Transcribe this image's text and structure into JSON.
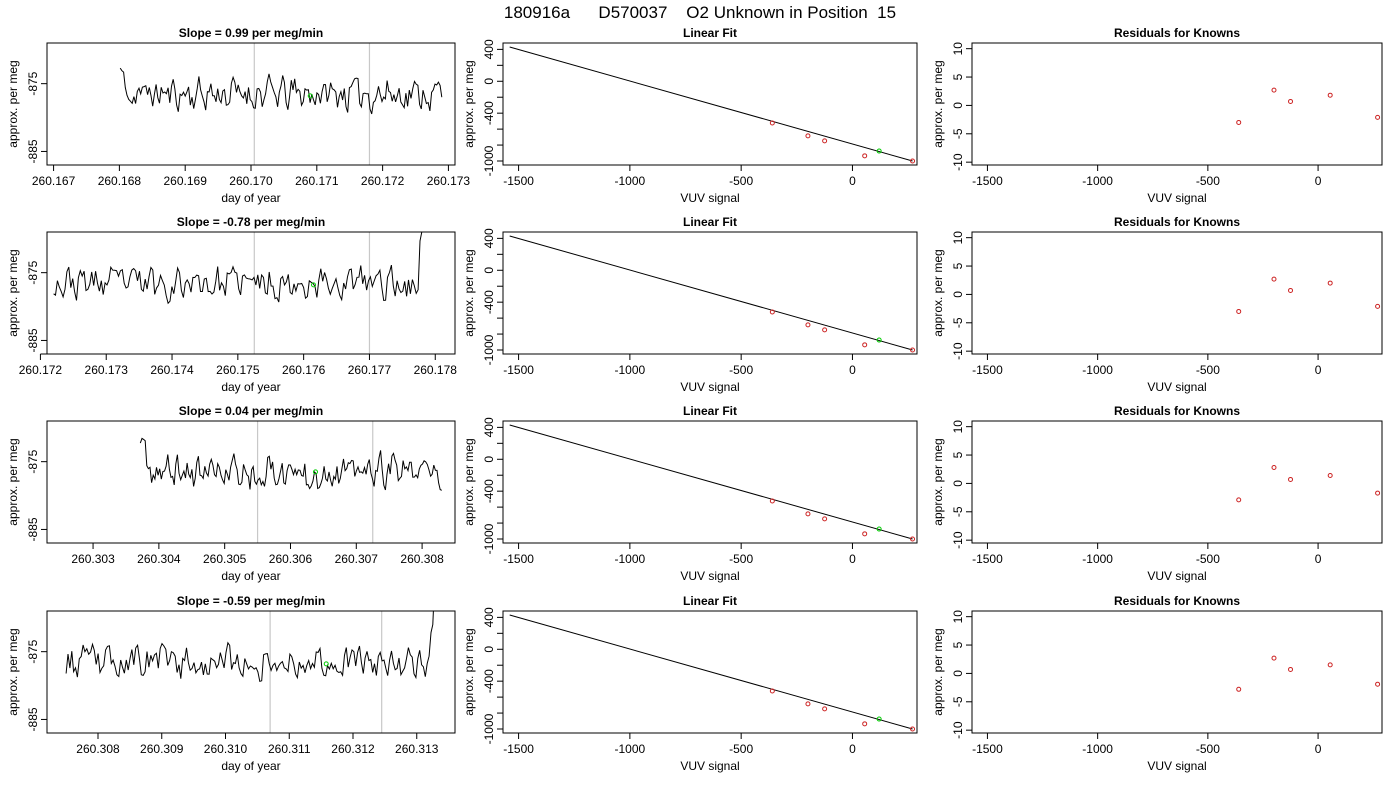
{
  "title": "180916a      D570037    O2 Unknown in Position  15",
  "chart_data": [
    {
      "type": "line",
      "panel": "drift",
      "row": 1,
      "title": "Slope =  0.99  per meg/min",
      "xlabel": "day of year",
      "ylabel": "approx. per meg",
      "xlim": [
        260.1669,
        260.1731
      ],
      "ylim": [
        -887,
        -869
      ],
      "xticks": [
        "260.167",
        "260.168",
        "260.169",
        "260.170",
        "260.171",
        "260.172",
        "260.173"
      ],
      "yticks": [
        "-875",
        "-885"
      ],
      "line": {
        "x_start": 260.1677,
        "x_end": 260.1729,
        "mean": -876.5,
        "amp": 2.2,
        "seed": 11,
        "spike_side": "left",
        "spike_end": 260.1682,
        "visible_start": 260.168
      },
      "vlines": [
        260.17005,
        260.1718
      ],
      "marker": {
        "x": 260.1709,
        "y": -876.8,
        "color": "#00cc00"
      }
    },
    {
      "type": "scatter",
      "panel": "fit",
      "row": 1,
      "title": "Linear Fit",
      "xlabel": "VUV signal",
      "ylabel": "approx. per meg",
      "xlim": [
        -1570,
        290
      ],
      "ylim": [
        -1050,
        480
      ],
      "xticks": [
        "-1500",
        "-1000",
        "-500",
        "0"
      ],
      "yticks": [
        "400",
        "0",
        "-400",
        "-1000"
      ],
      "ytick_values": [
        400,
        0,
        -400,
        -1000
      ],
      "yminor": [
        200,
        -200,
        -600,
        -800
      ],
      "fit_line": {
        "x0": -1540,
        "y0": 430,
        "x1": 270,
        "y1": -1000
      },
      "knowns": {
        "x": [
          -360,
          -200,
          -125,
          55,
          270
        ],
        "y": [
          -523,
          -685,
          -747,
          -935,
          -1000
        ],
        "color": "#cc2222"
      },
      "unknown": {
        "x": 120,
        "y": -875,
        "color": "#00cc00"
      }
    },
    {
      "type": "scatter",
      "panel": "residuals",
      "row": 1,
      "title": "Residuals for Knowns",
      "xlabel": "VUV signal",
      "ylabel": "approx. per meg",
      "xlim": [
        -1570,
        290
      ],
      "ylim": [
        -10.5,
        11
      ],
      "xticks": [
        "-1500",
        "-1000",
        "-500",
        "0"
      ],
      "yticks": [
        "10",
        "5",
        "0",
        "-5",
        "-10"
      ],
      "ytick_values": [
        10,
        5,
        0,
        -5,
        -10
      ],
      "points": {
        "x": [
          -360,
          -200,
          -125,
          55,
          270
        ],
        "y": [
          -3.0,
          2.7,
          0.7,
          1.8,
          -2.1
        ],
        "color": "#cc2222"
      }
    },
    {
      "type": "line",
      "panel": "drift",
      "row": 2,
      "title": "Slope =  -0.78  per meg/min",
      "xlabel": "day of year",
      "ylabel": "approx. per meg",
      "xlim": [
        260.1721,
        260.1783
      ],
      "ylim": [
        -887,
        -869
      ],
      "xticks": [
        "260.172",
        "260.173",
        "260.174",
        "260.175",
        "260.176",
        "260.177",
        "260.178"
      ],
      "yticks": [
        "-875",
        "-885"
      ],
      "line": {
        "x_start": 260.1722,
        "x_end": 260.178,
        "mean": -876.5,
        "amp": 2.2,
        "seed": 23,
        "spike_side": "right",
        "spike_start": 260.1776,
        "visible_start": 260.1722
      },
      "vlines": [
        260.17525,
        260.177
      ],
      "marker": {
        "x": 260.17615,
        "y": -876.8,
        "color": "#00cc00"
      }
    },
    {
      "type": "scatter",
      "panel": "fit",
      "row": 2,
      "title": "Linear Fit",
      "xlabel": "VUV signal",
      "ylabel": "approx. per meg",
      "xlim": [
        -1570,
        290
      ],
      "ylim": [
        -1050,
        480
      ],
      "xticks": [
        "-1500",
        "-1000",
        "-500",
        "0"
      ],
      "yticks": [
        "400",
        "0",
        "-400",
        "-1000"
      ],
      "ytick_values": [
        400,
        0,
        -400,
        -1000
      ],
      "yminor": [
        200,
        -200,
        -600,
        -800
      ],
      "fit_line": {
        "x0": -1540,
        "y0": 430,
        "x1": 270,
        "y1": -1000
      },
      "knowns": {
        "x": [
          -360,
          -200,
          -125,
          55,
          270
        ],
        "y": [
          -523,
          -685,
          -747,
          -935,
          -1000
        ],
        "color": "#cc2222"
      },
      "unknown": {
        "x": 120,
        "y": -875,
        "color": "#00cc00"
      }
    },
    {
      "type": "scatter",
      "panel": "residuals",
      "row": 2,
      "title": "Residuals for Knowns",
      "xlabel": "VUV signal",
      "ylabel": "approx. per meg",
      "xlim": [
        -1570,
        290
      ],
      "ylim": [
        -10.5,
        11
      ],
      "xticks": [
        "-1500",
        "-1000",
        "-500",
        "0"
      ],
      "yticks": [
        "10",
        "5",
        "0",
        "-5",
        "-10"
      ],
      "ytick_values": [
        10,
        5,
        0,
        -5,
        -10
      ],
      "points": {
        "x": [
          -360,
          -200,
          -125,
          55,
          270
        ],
        "y": [
          -3.0,
          2.7,
          0.7,
          2.0,
          -2.1
        ],
        "color": "#cc2222"
      }
    },
    {
      "type": "line",
      "panel": "drift",
      "row": 3,
      "title": "Slope =  0.04  per meg/min",
      "xlabel": "day of year",
      "ylabel": "approx. per meg",
      "xlim": [
        260.3023,
        260.3085
      ],
      "ylim": [
        -887,
        -869
      ],
      "xticks": [
        "260.303",
        "260.304",
        "260.305",
        "260.306",
        "260.307",
        "260.308"
      ],
      "yticks": [
        "-875",
        "-885"
      ],
      "line": {
        "x_start": 260.3034,
        "x_end": 260.3083,
        "mean": -876.5,
        "amp": 2.2,
        "seed": 37,
        "spike_side": "left",
        "spike_end": 260.3039,
        "visible_start": 260.3037
      },
      "vlines": [
        260.3055,
        260.30725
      ],
      "marker": {
        "x": 260.30638,
        "y": -876.5,
        "color": "#00cc00"
      }
    },
    {
      "type": "scatter",
      "panel": "fit",
      "row": 3,
      "title": "Linear Fit",
      "xlabel": "VUV signal",
      "ylabel": "approx. per meg",
      "xlim": [
        -1570,
        290
      ],
      "ylim": [
        -1050,
        480
      ],
      "xticks": [
        "-1500",
        "-1000",
        "-500",
        "0"
      ],
      "yticks": [
        "400",
        "0",
        "-400",
        "-1000"
      ],
      "ytick_values": [
        400,
        0,
        -400,
        -1000
      ],
      "yminor": [
        200,
        -200,
        -600,
        -800
      ],
      "fit_line": {
        "x0": -1540,
        "y0": 430,
        "x1": 270,
        "y1": -1000
      },
      "knowns": {
        "x": [
          -360,
          -200,
          -125,
          55,
          270
        ],
        "y": [
          -523,
          -685,
          -747,
          -935,
          -1000
        ],
        "color": "#cc2222"
      },
      "unknown": {
        "x": 120,
        "y": -875,
        "color": "#00cc00"
      }
    },
    {
      "type": "scatter",
      "panel": "residuals",
      "row": 3,
      "title": "Residuals for Knowns",
      "xlabel": "VUV signal",
      "ylabel": "approx. per meg",
      "xlim": [
        -1570,
        290
      ],
      "ylim": [
        -10.5,
        11
      ],
      "xticks": [
        "-1500",
        "-1000",
        "-500",
        "0"
      ],
      "yticks": [
        "10",
        "5",
        "0",
        "-5",
        "-10"
      ],
      "ytick_values": [
        10,
        5,
        0,
        -5,
        -10
      ],
      "points": {
        "x": [
          -360,
          -200,
          -125,
          55,
          270
        ],
        "y": [
          -2.9,
          2.8,
          0.7,
          1.4,
          -1.7
        ],
        "color": "#cc2222"
      }
    },
    {
      "type": "line",
      "panel": "drift",
      "row": 4,
      "title": "Slope =  -0.59  per meg/min",
      "xlabel": "day of year",
      "ylabel": "approx. per meg",
      "xlim": [
        260.3072,
        260.3136
      ],
      "ylim": [
        -887,
        -869
      ],
      "xticks": [
        "260.308",
        "260.309",
        "260.310",
        "260.311",
        "260.312",
        "260.313"
      ],
      "yticks": [
        "-875",
        "-885"
      ],
      "line": {
        "x_start": 260.3075,
        "x_end": 260.3134,
        "mean": -876.5,
        "amp": 2.2,
        "seed": 53,
        "spike_side": "right",
        "spike_start": 260.3131,
        "visible_start": 260.3075
      },
      "vlines": [
        260.3107,
        260.31245
      ],
      "marker": {
        "x": 260.31158,
        "y": -876.8,
        "color": "#00cc00"
      }
    },
    {
      "type": "scatter",
      "panel": "fit",
      "row": 4,
      "title": "Linear Fit",
      "xlabel": "VUV signal",
      "ylabel": "approx. per meg",
      "xlim": [
        -1570,
        290
      ],
      "ylim": [
        -1050,
        480
      ],
      "xticks": [
        "-1500",
        "-1000",
        "-500",
        "0"
      ],
      "yticks": [
        "400",
        "0",
        "-400",
        "-1000"
      ],
      "ytick_values": [
        400,
        0,
        -400,
        -1000
      ],
      "yminor": [
        200,
        -200,
        -600,
        -800
      ],
      "fit_line": {
        "x0": -1540,
        "y0": 430,
        "x1": 270,
        "y1": -1000
      },
      "knowns": {
        "x": [
          -360,
          -200,
          -125,
          55,
          270
        ],
        "y": [
          -523,
          -685,
          -747,
          -935,
          -1000
        ],
        "color": "#cc2222"
      },
      "unknown": {
        "x": 120,
        "y": -875,
        "color": "#00cc00"
      }
    },
    {
      "type": "scatter",
      "panel": "residuals",
      "row": 4,
      "title": "Residuals for Knowns",
      "xlabel": "VUV signal",
      "ylabel": "approx. per meg",
      "xlim": [
        -1570,
        290
      ],
      "ylim": [
        -10.5,
        11
      ],
      "xticks": [
        "-1500",
        "-1000",
        "-500",
        "0"
      ],
      "yticks": [
        "10",
        "5",
        "0",
        "-5",
        "-10"
      ],
      "ytick_values": [
        10,
        5,
        0,
        -5,
        -10
      ],
      "points": {
        "x": [
          -360,
          -200,
          -125,
          55,
          270
        ],
        "y": [
          -2.8,
          2.7,
          0.7,
          1.5,
          -1.9
        ],
        "color": "#cc2222"
      }
    }
  ]
}
